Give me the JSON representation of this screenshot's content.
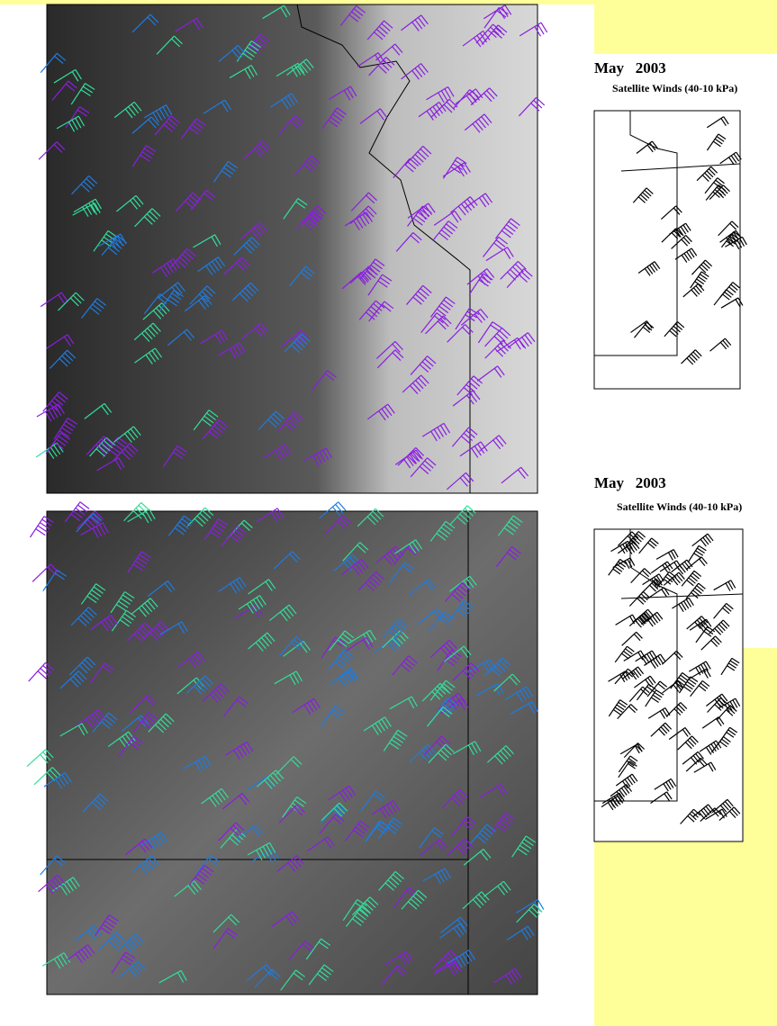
{
  "maps": [
    {
      "month": "May",
      "year": "2003",
      "caption": "Satellite Winds (40-10 kPa)"
    },
    {
      "month": "May",
      "year": "2003",
      "caption": "Satellite Winds (40-10 kPa)"
    }
  ]
}
